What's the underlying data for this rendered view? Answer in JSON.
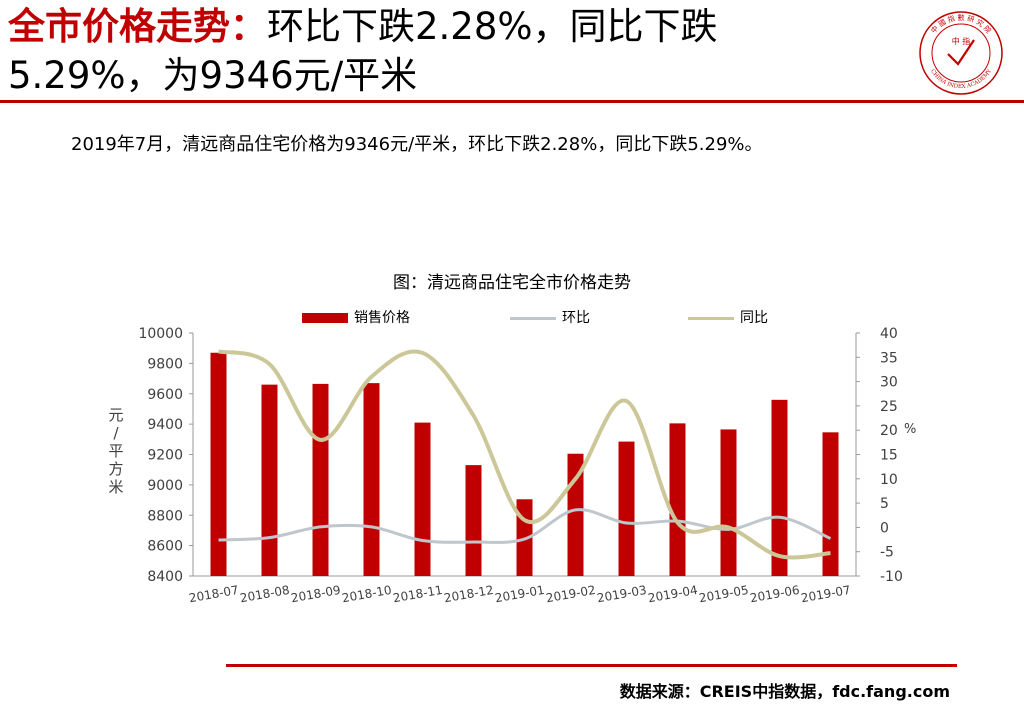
{
  "header": {
    "title_red": "全市价格走势：",
    "title_rest": "环比下跌2.28%，同比下跌",
    "title_line2": "5.29%，为9346元/平米"
  },
  "logo": {
    "text_top": "中 國 指 數 研 究 院",
    "text_center": "中 指",
    "text_bottom": "CHINA INDEX ACADEMY",
    "icon": "china-index-academy-seal"
  },
  "summary": "2019年7月，清远商品住宅价格为9346元/平米，环比下跌2.28%，同比下跌5.29%。",
  "source": "数据来源：CREIS中指数据，fdc.fang.com",
  "colors": {
    "accent": "#c00000",
    "bar": "#c00000",
    "mom_line": "#bfc6cc",
    "yoy_line": "#ccc798"
  },
  "chart_data": {
    "type": "bar",
    "title": "图：清远商品住宅全市价格走势",
    "categories": [
      "2018-07",
      "2018-08",
      "2018-09",
      "2018-10",
      "2018-11",
      "2018-12",
      "2019-01",
      "2019-02",
      "2019-03",
      "2019-04",
      "2019-05",
      "2019-06",
      "2019-07"
    ],
    "series": [
      {
        "name": "销售价格",
        "type": "bar",
        "axis": "left",
        "values": [
          9870,
          9660,
          9665,
          9670,
          9410,
          9130,
          8905,
          9205,
          9285,
          9405,
          9365,
          9560,
          9346
        ]
      },
      {
        "name": "环比",
        "type": "line",
        "axis": "right",
        "values": [
          -2.6,
          -2.1,
          0.1,
          0.1,
          -2.7,
          -3.0,
          -2.4,
          3.6,
          0.9,
          1.3,
          -0.4,
          2.1,
          -2.28
        ]
      },
      {
        "name": "同比",
        "type": "line",
        "axis": "right",
        "values": [
          36.2,
          33.6,
          18.0,
          31.0,
          35.9,
          23.0,
          1.5,
          10.0,
          26.0,
          1.0,
          0.0,
          -5.9,
          -5.29
        ]
      }
    ],
    "ylabel": "元/平方米",
    "y2label": "%",
    "ylim": [
      8400,
      10000
    ],
    "y2lim": [
      -10,
      40
    ],
    "yticks": [
      "10000",
      "9800",
      "9600",
      "9400",
      "9200",
      "9000",
      "8800",
      "8600",
      "8400"
    ],
    "y2ticks": [
      "40",
      "35",
      "30",
      "25",
      "20",
      "15",
      "10",
      "5",
      "0",
      "-5",
      "-10"
    ],
    "legend_position": "top",
    "grid": false
  }
}
